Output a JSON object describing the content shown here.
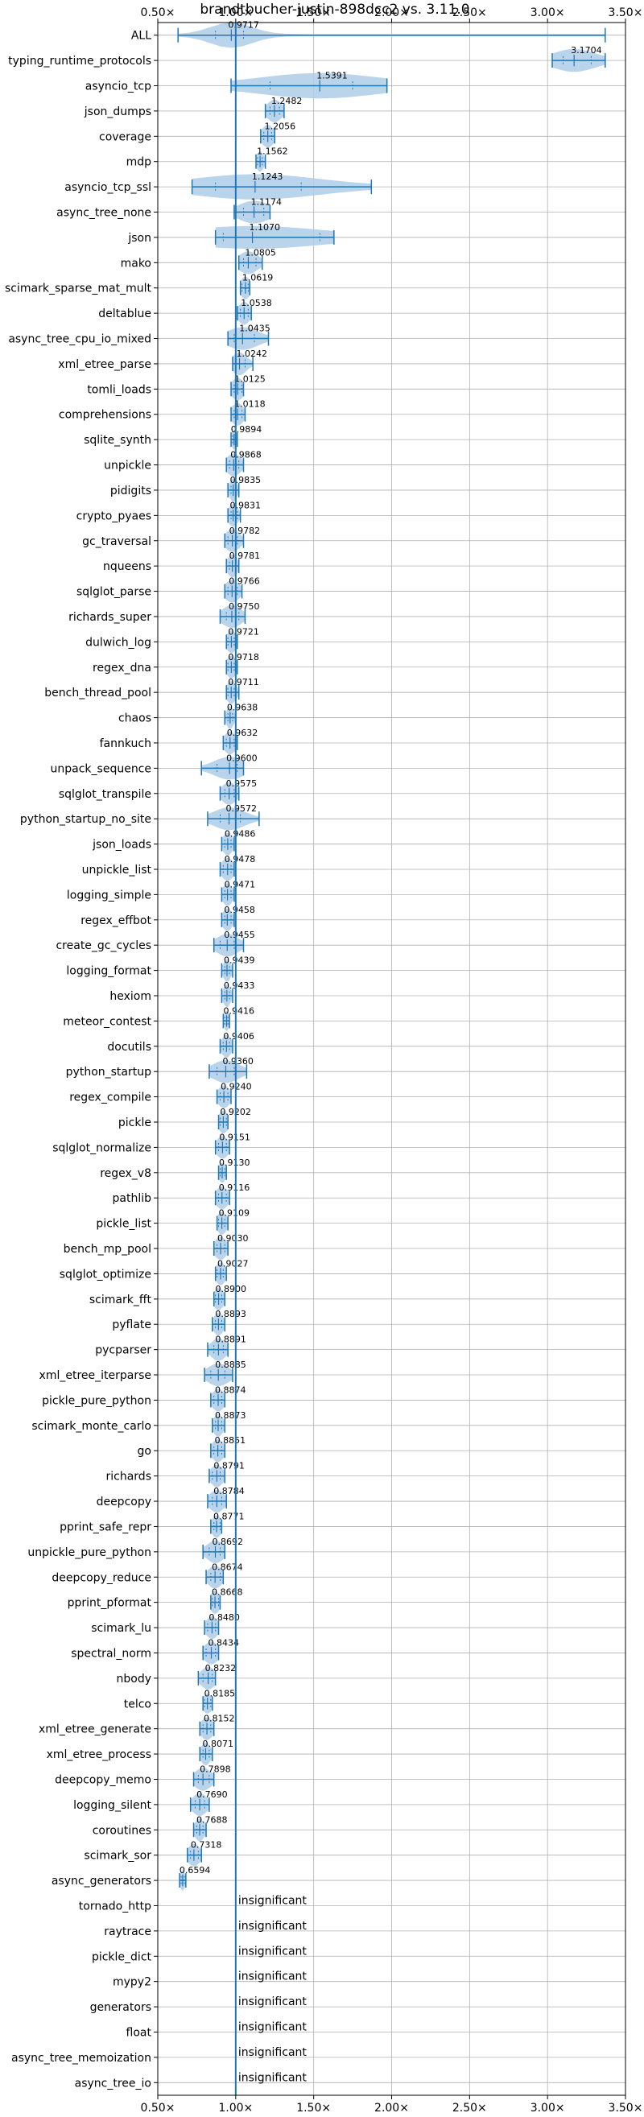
{
  "chart_data": {
    "type": "violin",
    "title": "brandtbucher-justin-898dcc2 vs. 3.11.0",
    "xlabel": "",
    "ylabel": "",
    "xlim": [
      0.5,
      3.5
    ],
    "xticks": [
      0.5,
      1.0,
      1.5,
      2.0,
      2.5,
      3.0,
      3.5
    ],
    "xtick_labels": [
      "0.50×",
      "1.00×",
      "1.50×",
      "2.00×",
      "2.50×",
      "3.00×",
      "3.50×"
    ],
    "reference_line": 1.0,
    "grid": true,
    "color": "#1f77b4",
    "fill_color": "#aecde9",
    "items": [
      {
        "name": "ALL",
        "value": 0.9717,
        "label": "0.9717",
        "min": 0.63,
        "max": 3.37,
        "q1": 0.87,
        "q3": 1.05,
        "width": 0.5
      },
      {
        "name": "typing_runtime_protocols",
        "value": 3.1704,
        "label": "3.1704",
        "min": 3.03,
        "max": 3.37,
        "q1": 3.1,
        "q3": 3.28,
        "width": 0.45
      },
      {
        "name": "asyncio_tcp",
        "value": 1.5391,
        "label": "1.5391",
        "min": 0.97,
        "max": 1.97,
        "q1": 1.22,
        "q3": 1.75,
        "width": 0.5
      },
      {
        "name": "json_dumps",
        "value": 1.2482,
        "label": "1.2482",
        "min": 1.19,
        "max": 1.31,
        "q1": 1.22,
        "q3": 1.28,
        "width": 0.45
      },
      {
        "name": "coverage",
        "value": 1.2056,
        "label": "1.2056",
        "min": 1.16,
        "max": 1.25,
        "q1": 1.18,
        "q3": 1.23,
        "width": 0.45
      },
      {
        "name": "mdp",
        "value": 1.1562,
        "label": "1.1562",
        "min": 1.13,
        "max": 1.19,
        "q1": 1.14,
        "q3": 1.17,
        "width": 0.4
      },
      {
        "name": "asyncio_tcp_ssl",
        "value": 1.1243,
        "label": "1.1243",
        "min": 0.72,
        "max": 1.87,
        "q1": 0.87,
        "q3": 1.42,
        "width": 0.5
      },
      {
        "name": "async_tree_none",
        "value": 1.1174,
        "label": "1.1174",
        "min": 0.99,
        "max": 1.22,
        "q1": 1.05,
        "q3": 1.18,
        "width": 0.45
      },
      {
        "name": "json",
        "value": 1.107,
        "label": "1.1070",
        "min": 0.87,
        "max": 1.63,
        "q1": 0.92,
        "q3": 1.54,
        "width": 0.45
      },
      {
        "name": "mako",
        "value": 1.0805,
        "label": "1.0805",
        "min": 1.02,
        "max": 1.17,
        "q1": 1.05,
        "q3": 1.13,
        "width": 0.45
      },
      {
        "name": "scimark_sparse_mat_mult",
        "value": 1.0619,
        "label": "1.0619",
        "min": 1.03,
        "max": 1.09,
        "q1": 1.04,
        "q3": 1.08,
        "width": 0.45
      },
      {
        "name": "deltablue",
        "value": 1.0538,
        "label": "1.0538",
        "min": 1.01,
        "max": 1.1,
        "q1": 1.03,
        "q3": 1.08,
        "width": 0.45
      },
      {
        "name": "async_tree_cpu_io_mixed",
        "value": 1.0435,
        "label": "1.0435",
        "min": 0.95,
        "max": 1.21,
        "q1": 0.99,
        "q3": 1.12,
        "width": 0.45
      },
      {
        "name": "xml_etree_parse",
        "value": 1.0242,
        "label": "1.0242",
        "min": 0.98,
        "max": 1.11,
        "q1": 1.0,
        "q3": 1.06,
        "width": 0.45
      },
      {
        "name": "tomli_loads",
        "value": 1.0125,
        "label": "1.0125",
        "min": 0.97,
        "max": 1.05,
        "q1": 0.99,
        "q3": 1.04,
        "width": 0.45
      },
      {
        "name": "comprehensions",
        "value": 1.0118,
        "label": "1.0118",
        "min": 0.97,
        "max": 1.06,
        "q1": 0.99,
        "q3": 1.04,
        "width": 0.45
      },
      {
        "name": "sqlite_synth",
        "value": 0.9894,
        "label": "0.9894",
        "min": 0.97,
        "max": 1.01,
        "q1": 0.98,
        "q3": 1.0,
        "width": 0.4
      },
      {
        "name": "unpickle",
        "value": 0.9868,
        "label": "0.9868",
        "min": 0.94,
        "max": 1.05,
        "q1": 0.96,
        "q3": 1.02,
        "width": 0.45
      },
      {
        "name": "pidigits",
        "value": 0.9835,
        "label": "0.9835",
        "min": 0.95,
        "max": 1.02,
        "q1": 0.97,
        "q3": 1.0,
        "width": 0.45
      },
      {
        "name": "crypto_pyaes",
        "value": 0.9831,
        "label": "0.9831",
        "min": 0.95,
        "max": 1.03,
        "q1": 0.97,
        "q3": 1.01,
        "width": 0.45
      },
      {
        "name": "gc_traversal",
        "value": 0.9782,
        "label": "0.9782",
        "min": 0.93,
        "max": 1.05,
        "q1": 0.95,
        "q3": 1.01,
        "width": 0.45
      },
      {
        "name": "nqueens",
        "value": 0.9781,
        "label": "0.9781",
        "min": 0.94,
        "max": 1.02,
        "q1": 0.96,
        "q3": 1.0,
        "width": 0.45
      },
      {
        "name": "sqlglot_parse",
        "value": 0.9766,
        "label": "0.9766",
        "min": 0.93,
        "max": 1.04,
        "q1": 0.95,
        "q3": 1.01,
        "width": 0.45
      },
      {
        "name": "richards_super",
        "value": 0.975,
        "label": "0.9750",
        "min": 0.9,
        "max": 1.06,
        "q1": 0.94,
        "q3": 1.02,
        "width": 0.45
      },
      {
        "name": "dulwich_log",
        "value": 0.9721,
        "label": "0.9721",
        "min": 0.94,
        "max": 1.01,
        "q1": 0.95,
        "q3": 0.99,
        "width": 0.45
      },
      {
        "name": "regex_dna",
        "value": 0.9718,
        "label": "0.9718",
        "min": 0.94,
        "max": 1.01,
        "q1": 0.95,
        "q3": 0.99,
        "width": 0.45
      },
      {
        "name": "bench_thread_pool",
        "value": 0.9711,
        "label": "0.9711",
        "min": 0.94,
        "max": 1.02,
        "q1": 0.95,
        "q3": 0.99,
        "width": 0.45
      },
      {
        "name": "chaos",
        "value": 0.9638,
        "label": "0.9638",
        "min": 0.93,
        "max": 1.0,
        "q1": 0.95,
        "q3": 0.98,
        "width": 0.45
      },
      {
        "name": "fannkuch",
        "value": 0.9632,
        "label": "0.9632",
        "min": 0.92,
        "max": 1.01,
        "q1": 0.94,
        "q3": 0.99,
        "width": 0.45
      },
      {
        "name": "unpack_sequence",
        "value": 0.96,
        "label": "0.9600",
        "min": 0.78,
        "max": 1.05,
        "q1": 0.88,
        "q3": 1.01,
        "width": 0.45
      },
      {
        "name": "sqlglot_transpile",
        "value": 0.9575,
        "label": "0.9575",
        "min": 0.9,
        "max": 1.02,
        "q1": 0.93,
        "q3": 0.99,
        "width": 0.45
      },
      {
        "name": "python_startup_no_site",
        "value": 0.9572,
        "label": "0.9572",
        "min": 0.82,
        "max": 1.15,
        "q1": 0.9,
        "q3": 1.03,
        "width": 0.45
      },
      {
        "name": "json_loads",
        "value": 0.9486,
        "label": "0.9486",
        "min": 0.91,
        "max": 0.99,
        "q1": 0.93,
        "q3": 0.97,
        "width": 0.45
      },
      {
        "name": "unpickle_list",
        "value": 0.9478,
        "label": "0.9478",
        "min": 0.9,
        "max": 0.99,
        "q1": 0.92,
        "q3": 0.97,
        "width": 0.45
      },
      {
        "name": "logging_simple",
        "value": 0.9471,
        "label": "0.9471",
        "min": 0.91,
        "max": 0.99,
        "q1": 0.93,
        "q3": 0.97,
        "width": 0.45
      },
      {
        "name": "regex_effbot",
        "value": 0.9458,
        "label": "0.9458",
        "min": 0.91,
        "max": 0.99,
        "q1": 0.93,
        "q3": 0.97,
        "width": 0.45
      },
      {
        "name": "create_gc_cycles",
        "value": 0.9455,
        "label": "0.9455",
        "min": 0.86,
        "max": 1.05,
        "q1": 0.9,
        "q3": 0.99,
        "width": 0.45
      },
      {
        "name": "logging_format",
        "value": 0.9439,
        "label": "0.9439",
        "min": 0.91,
        "max": 0.98,
        "q1": 0.93,
        "q3": 0.96,
        "width": 0.45
      },
      {
        "name": "hexiom",
        "value": 0.9433,
        "label": "0.9433",
        "min": 0.91,
        "max": 0.98,
        "q1": 0.93,
        "q3": 0.96,
        "width": 0.45
      },
      {
        "name": "meteor_contest",
        "value": 0.9416,
        "label": "0.9416",
        "min": 0.92,
        "max": 0.96,
        "q1": 0.93,
        "q3": 0.95,
        "width": 0.4
      },
      {
        "name": "docutils",
        "value": 0.9406,
        "label": "0.9406",
        "min": 0.9,
        "max": 0.98,
        "q1": 0.92,
        "q3": 0.96,
        "width": 0.45
      },
      {
        "name": "python_startup",
        "value": 0.936,
        "label": "0.9360",
        "min": 0.83,
        "max": 1.07,
        "q1": 0.88,
        "q3": 0.99,
        "width": 0.45
      },
      {
        "name": "regex_compile",
        "value": 0.924,
        "label": "0.9240",
        "min": 0.88,
        "max": 0.97,
        "q1": 0.9,
        "q3": 0.95,
        "width": 0.45
      },
      {
        "name": "pickle",
        "value": 0.9202,
        "label": "0.9202",
        "min": 0.89,
        "max": 0.95,
        "q1": 0.9,
        "q3": 0.94,
        "width": 0.45
      },
      {
        "name": "sqlglot_normalize",
        "value": 0.9151,
        "label": "0.9151",
        "min": 0.87,
        "max": 0.96,
        "q1": 0.89,
        "q3": 0.94,
        "width": 0.45
      },
      {
        "name": "regex_v8",
        "value": 0.913,
        "label": "0.9130",
        "min": 0.89,
        "max": 0.94,
        "q1": 0.9,
        "q3": 0.93,
        "width": 0.4
      },
      {
        "name": "pathlib",
        "value": 0.9116,
        "label": "0.9116",
        "min": 0.87,
        "max": 0.96,
        "q1": 0.89,
        "q3": 0.94,
        "width": 0.45
      },
      {
        "name": "pickle_list",
        "value": 0.9109,
        "label": "0.9109",
        "min": 0.88,
        "max": 0.95,
        "q1": 0.89,
        "q3": 0.93,
        "width": 0.45
      },
      {
        "name": "bench_mp_pool",
        "value": 0.903,
        "label": "0.9030",
        "min": 0.86,
        "max": 0.95,
        "q1": 0.88,
        "q3": 0.93,
        "width": 0.45
      },
      {
        "name": "sqlglot_optimize",
        "value": 0.9027,
        "label": "0.9027",
        "min": 0.87,
        "max": 0.94,
        "q1": 0.88,
        "q3": 0.92,
        "width": 0.45
      },
      {
        "name": "scimark_fft",
        "value": 0.89,
        "label": "0.8900",
        "min": 0.86,
        "max": 0.93,
        "q1": 0.87,
        "q3": 0.91,
        "width": 0.45
      },
      {
        "name": "pyflate",
        "value": 0.8893,
        "label": "0.8893",
        "min": 0.85,
        "max": 0.93,
        "q1": 0.87,
        "q3": 0.91,
        "width": 0.45
      },
      {
        "name": "pycparser",
        "value": 0.8891,
        "label": "0.8891",
        "min": 0.82,
        "max": 0.95,
        "q1": 0.86,
        "q3": 0.92,
        "width": 0.45
      },
      {
        "name": "xml_etree_iterparse",
        "value": 0.8885,
        "label": "0.8885",
        "min": 0.8,
        "max": 0.98,
        "q1": 0.84,
        "q3": 0.93,
        "width": 0.45
      },
      {
        "name": "pickle_pure_python",
        "value": 0.8874,
        "label": "0.8874",
        "min": 0.84,
        "max": 0.93,
        "q1": 0.86,
        "q3": 0.91,
        "width": 0.45
      },
      {
        "name": "scimark_monte_carlo",
        "value": 0.8873,
        "label": "0.8873",
        "min": 0.85,
        "max": 0.93,
        "q1": 0.87,
        "q3": 0.91,
        "width": 0.45
      },
      {
        "name": "go",
        "value": 0.8851,
        "label": "0.8851",
        "min": 0.84,
        "max": 0.93,
        "q1": 0.86,
        "q3": 0.91,
        "width": 0.45
      },
      {
        "name": "richards",
        "value": 0.8791,
        "label": "0.8791",
        "min": 0.83,
        "max": 0.93,
        "q1": 0.85,
        "q3": 0.9,
        "width": 0.45
      },
      {
        "name": "deepcopy",
        "value": 0.8784,
        "label": "0.8784",
        "min": 0.82,
        "max": 0.94,
        "q1": 0.85,
        "q3": 0.91,
        "width": 0.45
      },
      {
        "name": "pprint_safe_repr",
        "value": 0.8771,
        "label": "0.8771",
        "min": 0.84,
        "max": 0.91,
        "q1": 0.86,
        "q3": 0.9,
        "width": 0.45
      },
      {
        "name": "unpickle_pure_python",
        "value": 0.8692,
        "label": "0.8692",
        "min": 0.79,
        "max": 0.93,
        "q1": 0.83,
        "q3": 0.9,
        "width": 0.45
      },
      {
        "name": "deepcopy_reduce",
        "value": 0.8674,
        "label": "0.8674",
        "min": 0.81,
        "max": 0.92,
        "q1": 0.84,
        "q3": 0.9,
        "width": 0.45
      },
      {
        "name": "pprint_pformat",
        "value": 0.8668,
        "label": "0.8668",
        "min": 0.84,
        "max": 0.9,
        "q1": 0.85,
        "q3": 0.89,
        "width": 0.45
      },
      {
        "name": "scimark_lu",
        "value": 0.848,
        "label": "0.8480",
        "min": 0.8,
        "max": 0.89,
        "q1": 0.82,
        "q3": 0.87,
        "width": 0.45
      },
      {
        "name": "spectral_norm",
        "value": 0.8434,
        "label": "0.8434",
        "min": 0.79,
        "max": 0.89,
        "q1": 0.81,
        "q3": 0.87,
        "width": 0.45
      },
      {
        "name": "nbody",
        "value": 0.8232,
        "label": "0.8232",
        "min": 0.76,
        "max": 0.87,
        "q1": 0.79,
        "q3": 0.85,
        "width": 0.45
      },
      {
        "name": "telco",
        "value": 0.8185,
        "label": "0.8185",
        "min": 0.79,
        "max": 0.85,
        "q1": 0.8,
        "q3": 0.84,
        "width": 0.4
      },
      {
        "name": "xml_etree_generate",
        "value": 0.8152,
        "label": "0.8152",
        "min": 0.77,
        "max": 0.86,
        "q1": 0.79,
        "q3": 0.84,
        "width": 0.45
      },
      {
        "name": "xml_etree_process",
        "value": 0.8071,
        "label": "0.8071",
        "min": 0.77,
        "max": 0.85,
        "q1": 0.79,
        "q3": 0.83,
        "width": 0.45
      },
      {
        "name": "deepcopy_memo",
        "value": 0.7898,
        "label": "0.7898",
        "min": 0.73,
        "max": 0.86,
        "q1": 0.76,
        "q3": 0.83,
        "width": 0.45
      },
      {
        "name": "logging_silent",
        "value": 0.769,
        "label": "0.7690",
        "min": 0.71,
        "max": 0.83,
        "q1": 0.74,
        "q3": 0.8,
        "width": 0.45
      },
      {
        "name": "coroutines",
        "value": 0.7688,
        "label": "0.7688",
        "min": 0.73,
        "max": 0.81,
        "q1": 0.75,
        "q3": 0.79,
        "width": 0.45
      },
      {
        "name": "scimark_sor",
        "value": 0.7318,
        "label": "0.7318",
        "min": 0.69,
        "max": 0.78,
        "q1": 0.71,
        "q3": 0.76,
        "width": 0.45
      },
      {
        "name": "async_generators",
        "value": 0.6594,
        "label": "0.6594",
        "min": 0.64,
        "max": 0.68,
        "q1": 0.65,
        "q3": 0.67,
        "width": 0.4
      },
      {
        "name": "tornado_http",
        "insignificant": true,
        "label": "insignificant"
      },
      {
        "name": "raytrace",
        "insignificant": true,
        "label": "insignificant"
      },
      {
        "name": "pickle_dict",
        "insignificant": true,
        "label": "insignificant"
      },
      {
        "name": "mypy2",
        "insignificant": true,
        "label": "insignificant"
      },
      {
        "name": "generators",
        "insignificant": true,
        "label": "insignificant"
      },
      {
        "name": "float",
        "insignificant": true,
        "label": "insignificant"
      },
      {
        "name": "async_tree_memoization",
        "insignificant": true,
        "label": "insignificant"
      },
      {
        "name": "async_tree_io",
        "insignificant": true,
        "label": "insignificant"
      }
    ]
  }
}
